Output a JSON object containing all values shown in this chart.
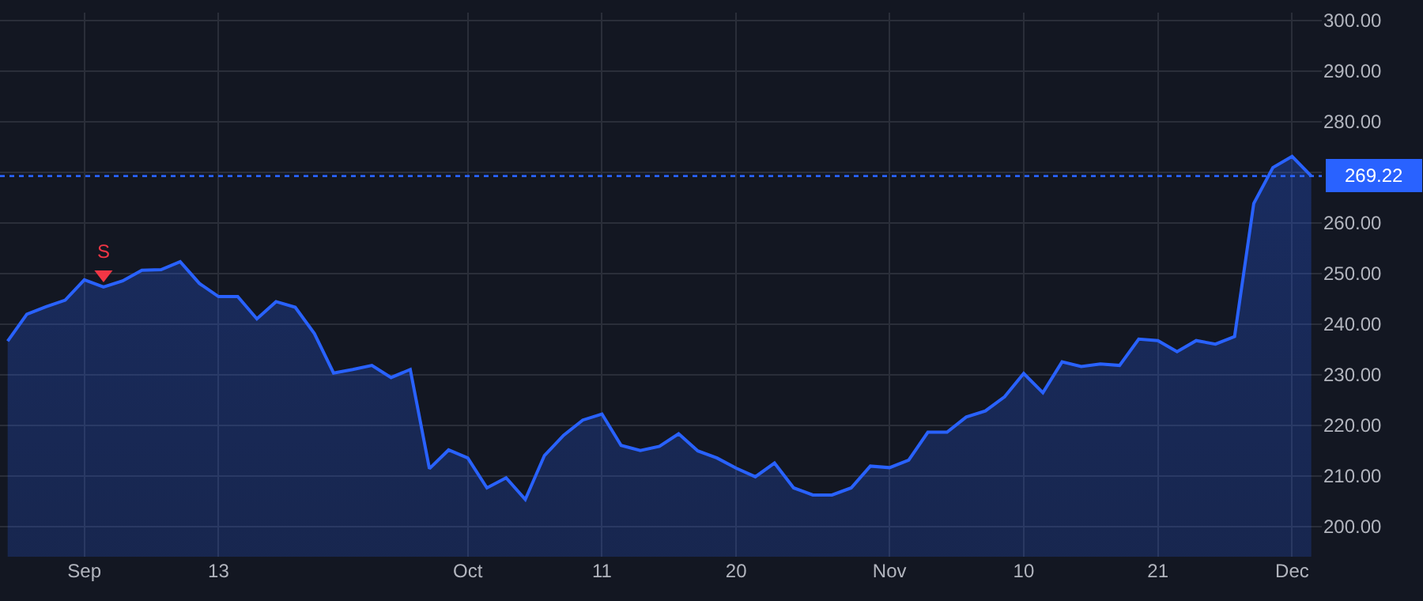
{
  "chart_data": {
    "type": "area",
    "categories": [
      null,
      null,
      null,
      null,
      "Sep",
      null,
      null,
      null,
      null,
      null,
      null,
      "13",
      null,
      null,
      null,
      null,
      null,
      null,
      null,
      null,
      null,
      null,
      null,
      null,
      "Oct",
      null,
      null,
      null,
      null,
      null,
      null,
      "11",
      null,
      null,
      null,
      null,
      null,
      null,
      "20",
      null,
      null,
      null,
      null,
      null,
      null,
      null,
      "Nov",
      null,
      null,
      null,
      null,
      null,
      null,
      "10",
      null,
      null,
      null,
      null,
      null,
      null,
      "21",
      null,
      null,
      null,
      null,
      null,
      null,
      "Dec",
      null
    ],
    "series": [
      {
        "color": "#2962ff",
        "values": [
          236.6,
          241.9,
          243.4,
          244.7,
          248.7,
          247.3,
          248.5,
          250.6,
          250.7,
          252.3,
          248.0,
          245.4,
          245.4,
          241.0,
          244.4,
          243.3,
          238.1,
          230.3,
          231.0,
          231.8,
          229.4,
          231.0,
          211.4,
          215.1,
          213.5,
          207.6,
          209.6,
          205.3,
          214.0,
          218.0,
          221.0,
          222.2,
          216.0,
          215.0,
          215.8,
          218.3,
          214.9,
          213.5,
          211.5,
          209.8,
          212.5,
          207.6,
          206.2,
          206.2,
          207.6,
          211.9,
          211.6,
          213.1,
          218.6,
          218.6,
          221.6,
          222.8,
          225.6,
          230.2,
          226.4,
          232.5,
          231.6,
          232.1,
          231.8,
          237.0,
          236.7,
          234.5,
          236.7,
          236.0,
          237.5,
          263.8,
          270.9,
          273.1,
          269.22
        ]
      },
      {
        "type": "scatter",
        "name": "S",
        "color": "#f23645",
        "marker": "triangle",
        "values": [
          null,
          null,
          null,
          null,
          null,
          249.8,
          null,
          null,
          null,
          null,
          null,
          null,
          null,
          null,
          null,
          null,
          null,
          null,
          null,
          null,
          null,
          null,
          null,
          null,
          null,
          null,
          null,
          null,
          null,
          null,
          null,
          null,
          null,
          null,
          null,
          null,
          null,
          null,
          null,
          null,
          null,
          null,
          null,
          null,
          null,
          null,
          null,
          null,
          null,
          null,
          null,
          null,
          null,
          null,
          null,
          null,
          null,
          null,
          null,
          null,
          null,
          null,
          null,
          null,
          null,
          null,
          null,
          null,
          null
        ]
      }
    ],
    "ylim": [
      194,
      301.5
    ],
    "yticks": [
      {
        "value": 200,
        "label": "200.00"
      },
      {
        "value": 210,
        "label": "210.00"
      },
      {
        "value": 220,
        "label": "220.00"
      },
      {
        "value": 230,
        "label": "230.00"
      },
      {
        "value": 240,
        "label": "240.00"
      },
      {
        "value": 250,
        "label": "250.00"
      },
      {
        "value": 260,
        "label": "260.00"
      },
      {
        "value": 270,
        "label": null
      },
      {
        "value": 280,
        "label": "280.00"
      },
      {
        "value": 290,
        "label": "290.00"
      },
      {
        "value": 300,
        "label": "300.00"
      }
    ],
    "ref_lines": [
      {
        "axis": "y",
        "value": 269.22,
        "label": "269.22",
        "color": "#2962ff",
        "line_style": "dotted"
      }
    ],
    "grid": true,
    "legend": false
  }
}
